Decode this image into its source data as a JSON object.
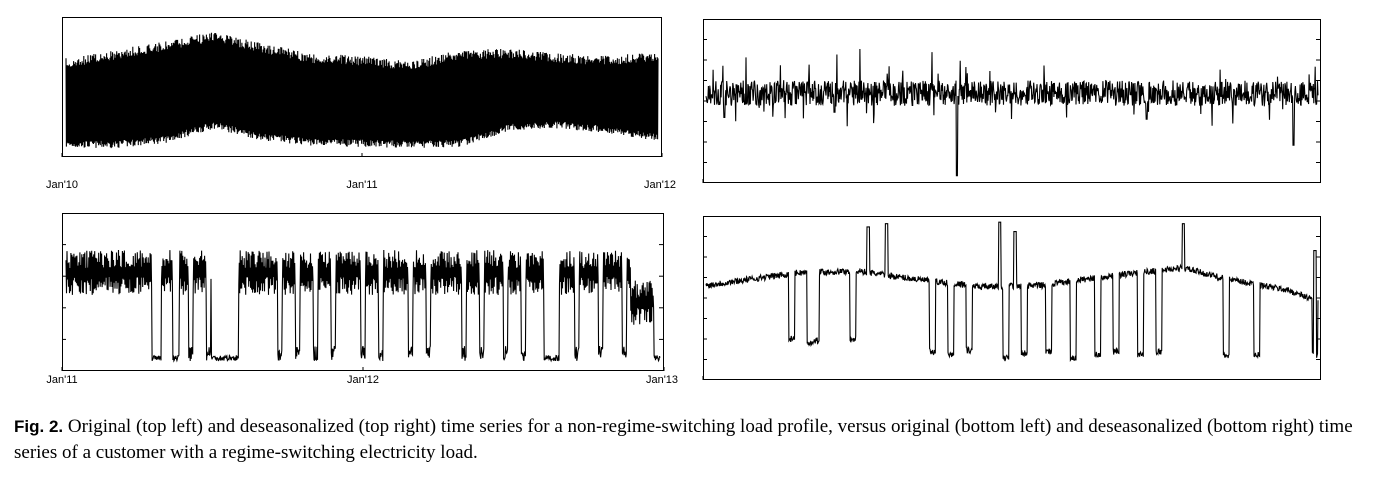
{
  "figure": {
    "caption_label": "Fig. 2.",
    "caption_text": "Original (top left) and deseasonalized (top right) time series for a non-regime-switching load profile, versus original (bottom left) and deseasonalized (bottom right) time series of a customer with a regime-switching electricity load."
  },
  "chart_data": [
    {
      "id": "top-left",
      "type": "line",
      "title": "",
      "xlabel": "",
      "ylabel": "",
      "x_tick_labels": [
        "Jan'10",
        "Jan'11",
        "Jan'12"
      ],
      "x_range": [
        "Jan'10",
        "Jan'12"
      ],
      "y_tick_labels": [],
      "grid": false,
      "series": [
        {
          "pattern": "dense-oscillation",
          "x": [
            "Jan'10",
            "Mar'10",
            "May'10",
            "Jul'10",
            "Sep'10",
            "Nov'10",
            "Jan'11",
            "Mar'11",
            "May'11",
            "Jul'11",
            "Sep'11",
            "Nov'11",
            "Jan'12"
          ],
          "upper": [
            0.78,
            0.85,
            0.92,
            1.0,
            0.9,
            0.82,
            0.8,
            0.76,
            0.85,
            0.86,
            0.82,
            0.8,
            0.84
          ],
          "lower": [
            0.04,
            0.04,
            0.08,
            0.2,
            0.1,
            0.06,
            0.05,
            0.04,
            0.05,
            0.18,
            0.2,
            0.16,
            0.1
          ],
          "mid": [
            0.6,
            0.62,
            0.68,
            0.72,
            0.66,
            0.62,
            0.6,
            0.58,
            0.62,
            0.5,
            0.48,
            0.46,
            0.56
          ]
        }
      ]
    },
    {
      "id": "top-right",
      "type": "line",
      "title": "",
      "xlabel": "",
      "ylabel": "",
      "x_tick_labels": [],
      "y_tick_labels": [],
      "grid": false,
      "series": [
        {
          "pattern": "noise-around-level",
          "level": 0.55,
          "noise": 0.1,
          "downward_spikes": [
            {
              "x": 0.03,
              "depth": 0.28
            },
            {
              "x": 0.21,
              "depth": 0.22
            },
            {
              "x": 0.41,
              "depth": 0.95
            },
            {
              "x": 0.72,
              "depth": 0.3
            },
            {
              "x": 0.96,
              "depth": 0.6
            }
          ]
        }
      ]
    },
    {
      "id": "bottom-left",
      "type": "line",
      "title": "",
      "xlabel": "",
      "ylabel": "",
      "x_tick_labels": [
        "Jan'11",
        "Jan'12",
        "Jan'13"
      ],
      "x_range": [
        "Jan'11",
        "Jan'13"
      ],
      "y_tick_labels": [],
      "grid": false,
      "series": [
        {
          "pattern": "regime-switching",
          "high_level": 0.78,
          "low_level": 0.04,
          "low_regimes": [
            [
              0.145,
              0.16
            ],
            [
              0.18,
              0.19
            ],
            [
              0.245,
              0.29
            ],
            [
              0.805,
              0.83
            ],
            [
              0.99,
              1.0
            ]
          ],
          "drops": [
            0.21,
            0.24,
            0.36,
            0.39,
            0.42,
            0.45,
            0.5,
            0.53,
            0.58,
            0.61,
            0.67,
            0.7,
            0.74,
            0.77,
            0.86,
            0.9,
            0.94
          ]
        }
      ]
    },
    {
      "id": "bottom-right",
      "type": "line",
      "title": "",
      "xlabel": "",
      "ylabel": "",
      "x_tick_labels": [],
      "y_tick_labels": [],
      "grid": false,
      "series": [
        {
          "pattern": "regime-switching-deseasonalized",
          "baseline": [
            [
              0.0,
              0.58
            ],
            [
              0.15,
              0.66
            ],
            [
              0.25,
              0.67
            ],
            [
              0.32,
              0.63
            ],
            [
              0.45,
              0.57
            ],
            [
              0.55,
              0.58
            ],
            [
              0.62,
              0.62
            ],
            [
              0.75,
              0.68
            ],
            [
              0.78,
              0.69
            ],
            [
              0.85,
              0.62
            ],
            [
              0.95,
              0.55
            ],
            [
              1.0,
              0.48
            ]
          ],
          "down_drops": [
            [
              0.14,
              0.22
            ],
            [
              0.17,
              0.2
            ],
            [
              0.18,
              0.21
            ],
            [
              0.24,
              0.22
            ],
            [
              0.37,
              0.14
            ],
            [
              0.4,
              0.12
            ],
            [
              0.43,
              0.15
            ],
            [
              0.49,
              0.1
            ],
            [
              0.52,
              0.13
            ],
            [
              0.56,
              0.14
            ],
            [
              0.6,
              0.1
            ],
            [
              0.64,
              0.12
            ],
            [
              0.67,
              0.14
            ],
            [
              0.71,
              0.12
            ],
            [
              0.74,
              0.14
            ],
            [
              0.85,
              0.12
            ],
            [
              0.9,
              0.12
            ],
            [
              0.995,
              0.12
            ]
          ],
          "up_spikes": [
            [
              0.265,
              0.95
            ],
            [
              0.295,
              0.97
            ],
            [
              0.48,
              0.98
            ],
            [
              0.505,
              0.92
            ],
            [
              0.78,
              0.97
            ],
            [
              0.995,
              0.8
            ]
          ]
        }
      ]
    }
  ]
}
